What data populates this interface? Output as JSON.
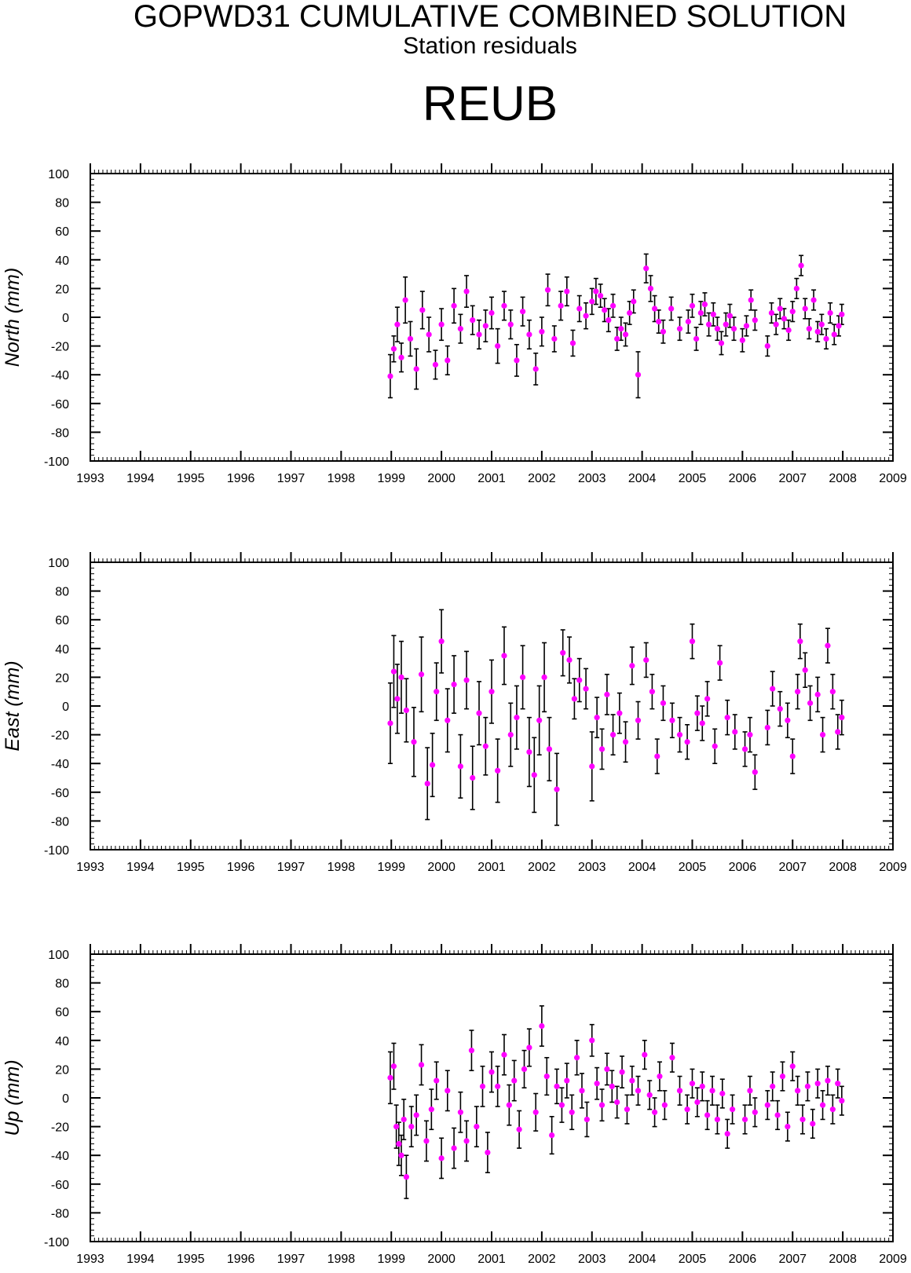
{
  "header": {
    "title": "GOPWD31 CUMULATIVE COMBINED SOLUTION",
    "subtitle": "Station residuals",
    "station": "REUB"
  },
  "colors": {
    "point": "#ff00ff",
    "errorbar": "#000000",
    "axis": "#000000"
  },
  "chart_data": [
    {
      "type": "scatter",
      "name": "north-panel",
      "ylabel": "North (mm)",
      "xlim": [
        1993,
        2009
      ],
      "ylim": [
        -100,
        100
      ],
      "xticks": [
        "1993",
        "1994",
        "1995",
        "1996",
        "1997",
        "1998",
        "1999",
        "2000",
        "2001",
        "2002",
        "2003",
        "2004",
        "2005",
        "2006",
        "2007",
        "2008",
        "2009"
      ],
      "yticks": [
        "100",
        "80",
        "60",
        "40",
        "20",
        "0",
        "-20",
        "-40",
        "-60",
        "-80",
        "-100"
      ],
      "grid": false,
      "errorbars": true,
      "x": [
        1998.98,
        1999.05,
        1999.12,
        1999.2,
        1999.28,
        1999.38,
        1999.5,
        1999.62,
        1999.75,
        1999.88,
        2000.0,
        2000.12,
        2000.25,
        2000.38,
        2000.5,
        2000.62,
        2000.75,
        2000.88,
        2001.0,
        2001.12,
        2001.25,
        2001.38,
        2001.5,
        2001.62,
        2001.75,
        2001.88,
        2002.0,
        2002.12,
        2002.25,
        2002.38,
        2002.5,
        2002.62,
        2002.75,
        2002.88,
        2003.0,
        2003.08,
        2003.17,
        2003.25,
        2003.33,
        2003.42,
        2003.5,
        2003.58,
        2003.67,
        2003.75,
        2003.83,
        2003.92,
        2004.08,
        2004.17,
        2004.25,
        2004.33,
        2004.42,
        2004.58,
        2004.75,
        2004.92,
        2005.0,
        2005.08,
        2005.17,
        2005.25,
        2005.33,
        2005.42,
        2005.5,
        2005.58,
        2005.67,
        2005.75,
        2005.83,
        2006.0,
        2006.08,
        2006.17,
        2006.25,
        2006.5,
        2006.58,
        2006.67,
        2006.75,
        2006.83,
        2006.92,
        2007.0,
        2007.08,
        2007.17,
        2007.25,
        2007.33,
        2007.42,
        2007.5,
        2007.58,
        2007.67,
        2007.75,
        2007.83,
        2007.92,
        2007.98
      ],
      "y": [
        -41,
        -22,
        -5,
        -28,
        12,
        -15,
        -36,
        5,
        -12,
        -33,
        -5,
        -30,
        8,
        -8,
        18,
        -2,
        -12,
        -6,
        3,
        -20,
        8,
        -5,
        -30,
        4,
        -12,
        -36,
        -10,
        19,
        -15,
        8,
        18,
        -18,
        6,
        1,
        11,
        18,
        15,
        5,
        -2,
        8,
        -15,
        -8,
        -12,
        3,
        11,
        -40,
        34,
        20,
        6,
        -3,
        -10,
        6,
        -8,
        -3,
        8,
        -15,
        3,
        9,
        -5,
        2,
        -8,
        -18,
        -5,
        1,
        -8,
        -16,
        -6,
        12,
        -2,
        -20,
        3,
        -5,
        6,
        -1,
        -9,
        4,
        20,
        36,
        6,
        -8,
        12,
        -10,
        -5,
        -15,
        3,
        -12,
        -6,
        2
      ],
      "yerr": [
        15,
        9,
        12,
        10,
        16,
        12,
        14,
        13,
        12,
        10,
        11,
        10,
        12,
        10,
        11,
        10,
        10,
        11,
        11,
        12,
        10,
        10,
        11,
        10,
        10,
        11,
        10,
        11,
        9,
        10,
        10,
        9,
        9,
        9,
        9,
        9,
        8,
        8,
        8,
        8,
        8,
        8,
        8,
        8,
        8,
        16,
        10,
        9,
        9,
        8,
        8,
        8,
        8,
        8,
        8,
        8,
        8,
        8,
        8,
        8,
        8,
        8,
        8,
        8,
        8,
        8,
        7,
        7,
        7,
        7,
        7,
        7,
        7,
        7,
        7,
        7,
        7,
        7,
        7,
        7,
        7,
        7,
        7,
        7,
        7,
        7,
        7,
        7
      ]
    },
    {
      "type": "scatter",
      "name": "east-panel",
      "ylabel": "East (mm)",
      "xlim": [
        1993,
        2009
      ],
      "ylim": [
        -100,
        100
      ],
      "xticks": [
        "1993",
        "1994",
        "1995",
        "1996",
        "1997",
        "1998",
        "1999",
        "2000",
        "2001",
        "2002",
        "2003",
        "2004",
        "2005",
        "2006",
        "2007",
        "2008",
        "2009"
      ],
      "yticks": [
        "100",
        "80",
        "60",
        "40",
        "20",
        "0",
        "-20",
        "-40",
        "-60",
        "-80",
        "-100"
      ],
      "grid": false,
      "errorbars": true,
      "x": [
        1998.98,
        1999.05,
        1999.12,
        1999.2,
        1999.3,
        1999.45,
        1999.6,
        1999.72,
        1999.82,
        1999.9,
        2000.0,
        2000.12,
        2000.25,
        2000.38,
        2000.5,
        2000.62,
        2000.75,
        2000.88,
        2001.0,
        2001.12,
        2001.25,
        2001.38,
        2001.5,
        2001.62,
        2001.75,
        2001.85,
        2001.95,
        2002.05,
        2002.15,
        2002.3,
        2002.42,
        2002.55,
        2002.65,
        2002.75,
        2002.88,
        2003.0,
        2003.1,
        2003.2,
        2003.3,
        2003.42,
        2003.55,
        2003.67,
        2003.8,
        2003.92,
        2004.08,
        2004.2,
        2004.3,
        2004.42,
        2004.6,
        2004.75,
        2004.9,
        2005.0,
        2005.1,
        2005.2,
        2005.3,
        2005.45,
        2005.55,
        2005.7,
        2005.85,
        2006.05,
        2006.15,
        2006.25,
        2006.5,
        2006.6,
        2006.75,
        2006.9,
        2007.0,
        2007.1,
        2007.15,
        2007.25,
        2007.35,
        2007.5,
        2007.6,
        2007.7,
        2007.8,
        2007.9,
        2007.98
      ],
      "y": [
        -12,
        24,
        5,
        20,
        -3,
        -25,
        22,
        -54,
        -41,
        10,
        45,
        -10,
        15,
        -42,
        18,
        -50,
        -5,
        -28,
        10,
        -45,
        35,
        -20,
        -8,
        20,
        -32,
        -48,
        -10,
        20,
        -30,
        -58,
        37,
        32,
        5,
        18,
        12,
        -42,
        -8,
        -30,
        8,
        -20,
        -5,
        -25,
        28,
        -10,
        32,
        10,
        -35,
        2,
        -10,
        -20,
        -25,
        45,
        -5,
        -12,
        5,
        -28,
        30,
        -8,
        -18,
        -30,
        -20,
        -46,
        -15,
        12,
        -2,
        -10,
        -35,
        10,
        45,
        25,
        2,
        8,
        -20,
        42,
        10,
        -18,
        -8
      ],
      "yerr": [
        28,
        25,
        24,
        25,
        22,
        24,
        26,
        25,
        22,
        20,
        22,
        22,
        20,
        22,
        20,
        22,
        22,
        20,
        22,
        22,
        20,
        22,
        22,
        22,
        24,
        26,
        24,
        24,
        22,
        25,
        16,
        16,
        14,
        15,
        14,
        24,
        14,
        14,
        14,
        14,
        14,
        14,
        13,
        13,
        12,
        12,
        12,
        12,
        12,
        12,
        12,
        12,
        12,
        12,
        12,
        12,
        12,
        12,
        12,
        12,
        12,
        12,
        12,
        12,
        12,
        12,
        12,
        12,
        12,
        12,
        12,
        12,
        12,
        12,
        12,
        12,
        12
      ]
    },
    {
      "type": "scatter",
      "name": "up-panel",
      "ylabel": "Up (mm)",
      "xlim": [
        1993,
        2009
      ],
      "ylim": [
        -100,
        100
      ],
      "xticks": [
        "1993",
        "1994",
        "1995",
        "1996",
        "1997",
        "1998",
        "1999",
        "2000",
        "2001",
        "2002",
        "2003",
        "2004",
        "2005",
        "2006",
        "2007",
        "2008",
        "2009"
      ],
      "yticks": [
        "100",
        "80",
        "60",
        "40",
        "20",
        "0",
        "-20",
        "-40",
        "-60",
        "-80",
        "-100"
      ],
      "grid": false,
      "errorbars": true,
      "x": [
        1998.98,
        1999.05,
        1999.1,
        1999.15,
        1999.2,
        1999.25,
        1999.3,
        1999.4,
        1999.5,
        1999.6,
        1999.7,
        1999.8,
        1999.9,
        2000.0,
        2000.12,
        2000.25,
        2000.38,
        2000.5,
        2000.6,
        2000.7,
        2000.82,
        2000.92,
        2001.0,
        2001.12,
        2001.25,
        2001.35,
        2001.45,
        2001.55,
        2001.65,
        2001.75,
        2001.88,
        2002.0,
        2002.1,
        2002.2,
        2002.3,
        2002.4,
        2002.5,
        2002.6,
        2002.7,
        2002.8,
        2002.9,
        2003.0,
        2003.1,
        2003.2,
        2003.3,
        2003.4,
        2003.5,
        2003.6,
        2003.7,
        2003.8,
        2003.92,
        2004.05,
        2004.15,
        2004.25,
        2004.35,
        2004.45,
        2004.6,
        2004.75,
        2004.9,
        2005.0,
        2005.1,
        2005.2,
        2005.3,
        2005.4,
        2005.5,
        2005.6,
        2005.7,
        2005.8,
        2006.05,
        2006.15,
        2006.25,
        2006.5,
        2006.6,
        2006.7,
        2006.8,
        2006.9,
        2007.0,
        2007.1,
        2007.2,
        2007.3,
        2007.4,
        2007.5,
        2007.6,
        2007.7,
        2007.8,
        2007.9,
        2007.98
      ],
      "y": [
        14,
        22,
        -20,
        -32,
        -40,
        -15,
        -55,
        -20,
        -12,
        23,
        -30,
        -8,
        12,
        -42,
        5,
        -35,
        -10,
        -30,
        33,
        -20,
        8,
        -38,
        18,
        8,
        30,
        -5,
        12,
        -22,
        20,
        35,
        -10,
        50,
        15,
        -26,
        8,
        -5,
        12,
        -10,
        28,
        5,
        -15,
        40,
        10,
        -5,
        20,
        8,
        -3,
        18,
        -8,
        12,
        5,
        30,
        2,
        -10,
        15,
        -5,
        28,
        5,
        -8,
        10,
        -3,
        8,
        -12,
        5,
        -15,
        3,
        -25,
        -8,
        -15,
        5,
        -10,
        -5,
        8,
        -12,
        15,
        -20,
        22,
        5,
        -15,
        8,
        -18,
        10,
        -5,
        12,
        -8,
        10,
        -2
      ],
      "yerr": [
        18,
        16,
        15,
        15,
        14,
        14,
        15,
        14,
        14,
        14,
        14,
        14,
        13,
        14,
        14,
        14,
        14,
        14,
        14,
        14,
        14,
        14,
        14,
        14,
        14,
        14,
        14,
        13,
        13,
        13,
        13,
        14,
        13,
        13,
        12,
        12,
        12,
        12,
        12,
        12,
        12,
        11,
        11,
        11,
        11,
        11,
        11,
        11,
        10,
        10,
        10,
        10,
        10,
        10,
        10,
        10,
        10,
        10,
        10,
        10,
        10,
        10,
        10,
        10,
        10,
        10,
        10,
        10,
        10,
        10,
        10,
        10,
        10,
        10,
        10,
        10,
        10,
        10,
        10,
        10,
        10,
        10,
        10,
        10,
        10,
        10,
        10
      ]
    }
  ]
}
